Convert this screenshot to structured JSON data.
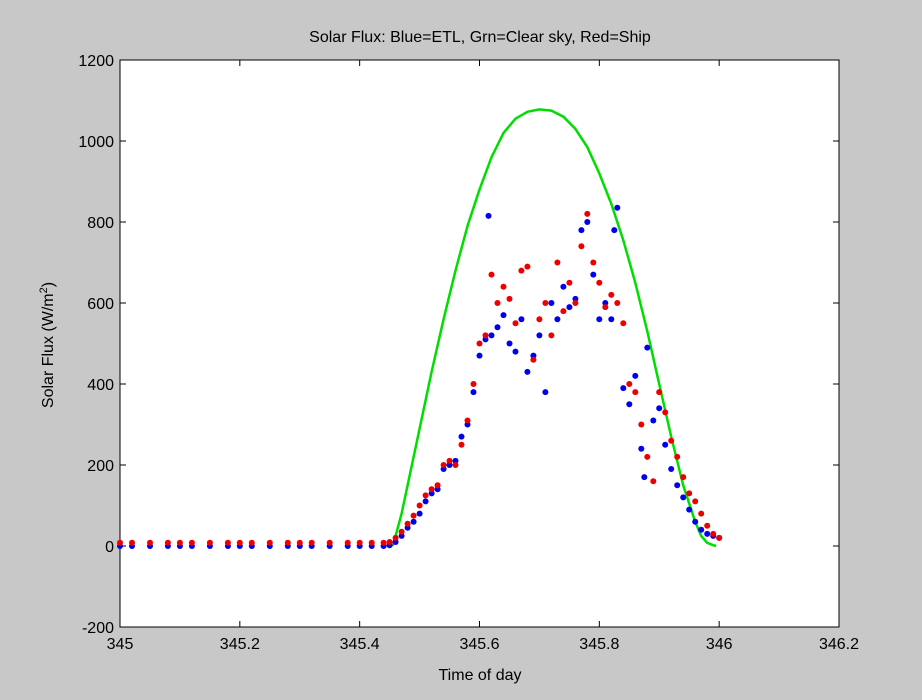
{
  "chart_data": {
    "type": "scatter",
    "title": "Solar Flux:  Blue=ETL, Grn=Clear sky,  Red=Ship",
    "xlabel": "Time of day",
    "ylabel": "Solar Flux (W/m",
    "ylabel_superscript": "2",
    "ylabel_close": ")",
    "xlim": [
      345,
      346.2
    ],
    "ylim": [
      -200,
      1200
    ],
    "xticks": [
      345,
      345.2,
      345.4,
      345.6,
      345.8,
      346,
      346.2
    ],
    "xtick_labels": [
      "345",
      "345.2",
      "345.4",
      "345.6",
      "345.8",
      "346",
      "346.2"
    ],
    "yticks": [
      -200,
      0,
      200,
      400,
      600,
      800,
      1000,
      1200
    ],
    "ytick_labels": [
      "-200",
      "0",
      "200",
      "400",
      "600",
      "800",
      "1000",
      "1200"
    ],
    "grid": false,
    "series": [
      {
        "name": "Grn=Clear sky",
        "style": "line",
        "color": "#00dd00",
        "x": [
          345.455,
          345.46,
          345.47,
          345.48,
          345.5,
          345.52,
          345.54,
          345.56,
          345.58,
          345.6,
          345.62,
          345.64,
          345.66,
          345.68,
          345.7,
          345.72,
          345.74,
          345.76,
          345.78,
          345.8,
          345.82,
          345.84,
          345.86,
          345.88,
          345.9,
          345.92,
          345.94,
          345.96,
          345.97,
          345.98,
          345.99,
          345.995
        ],
        "y": [
          0,
          25,
          80,
          150,
          290,
          430,
          560,
          680,
          790,
          880,
          960,
          1020,
          1055,
          1072,
          1078,
          1075,
          1060,
          1030,
          985,
          920,
          845,
          755,
          650,
          530,
          400,
          270,
          150,
          60,
          25,
          8,
          2,
          0
        ]
      },
      {
        "name": "Blue=ETL",
        "style": "points",
        "color": "#0000ee",
        "x": [
          345.0,
          345.02,
          345.05,
          345.08,
          345.1,
          345.12,
          345.15,
          345.18,
          345.2,
          345.22,
          345.25,
          345.28,
          345.3,
          345.32,
          345.35,
          345.38,
          345.4,
          345.42,
          345.44,
          345.45,
          345.46,
          345.47,
          345.48,
          345.49,
          345.5,
          345.51,
          345.52,
          345.53,
          345.54,
          345.55,
          345.56,
          345.57,
          345.58,
          345.59,
          345.6,
          345.61,
          345.615,
          345.62,
          345.63,
          345.64,
          345.65,
          345.66,
          345.67,
          345.68,
          345.69,
          345.7,
          345.71,
          345.72,
          345.73,
          345.74,
          345.75,
          345.76,
          345.77,
          345.78,
          345.79,
          345.8,
          345.81,
          345.82,
          345.825,
          345.83,
          345.84,
          345.85,
          345.86,
          345.87,
          345.875,
          345.88,
          345.89,
          345.9,
          345.91,
          345.92,
          345.93,
          345.94,
          345.95,
          345.96,
          345.97,
          345.98,
          345.99,
          346.0
        ],
        "y": [
          0,
          0,
          0,
          0,
          0,
          0,
          0,
          0,
          0,
          0,
          0,
          0,
          0,
          0,
          0,
          0,
          0,
          0,
          0,
          2,
          10,
          25,
          45,
          60,
          80,
          110,
          130,
          140,
          190,
          200,
          210,
          270,
          300,
          380,
          470,
          510,
          815,
          520,
          540,
          570,
          500,
          480,
          560,
          430,
          470,
          520,
          380,
          600,
          560,
          640,
          590,
          610,
          780,
          800,
          670,
          560,
          600,
          560,
          780,
          835,
          390,
          350,
          420,
          240,
          170,
          490,
          310,
          340,
          250,
          190,
          150,
          120,
          90,
          60,
          40,
          30,
          25,
          20
        ]
      },
      {
        "name": "Red=Ship",
        "style": "points",
        "color": "#ee0000",
        "x": [
          345.0,
          345.02,
          345.05,
          345.08,
          345.1,
          345.12,
          345.15,
          345.18,
          345.2,
          345.22,
          345.25,
          345.28,
          345.3,
          345.32,
          345.35,
          345.38,
          345.4,
          345.42,
          345.44,
          345.45,
          345.46,
          345.47,
          345.48,
          345.49,
          345.5,
          345.51,
          345.52,
          345.53,
          345.54,
          345.55,
          345.56,
          345.57,
          345.58,
          345.59,
          345.6,
          345.61,
          345.62,
          345.63,
          345.64,
          345.65,
          345.66,
          345.67,
          345.68,
          345.69,
          345.7,
          345.71,
          345.72,
          345.73,
          345.74,
          345.75,
          345.76,
          345.77,
          345.78,
          345.79,
          345.8,
          345.81,
          345.82,
          345.83,
          345.84,
          345.85,
          345.86,
          345.87,
          345.88,
          345.89,
          345.9,
          345.91,
          345.92,
          345.93,
          345.94,
          345.95,
          345.96,
          345.97,
          345.98,
          345.99,
          346.0
        ],
        "y": [
          8,
          8,
          8,
          8,
          8,
          8,
          8,
          8,
          8,
          8,
          8,
          8,
          8,
          8,
          8,
          8,
          8,
          8,
          8,
          10,
          20,
          35,
          55,
          75,
          100,
          125,
          140,
          150,
          200,
          210,
          200,
          250,
          310,
          400,
          500,
          520,
          670,
          600,
          640,
          610,
          550,
          680,
          690,
          460,
          560,
          600,
          520,
          700,
          580,
          650,
          600,
          740,
          820,
          700,
          650,
          590,
          620,
          600,
          550,
          400,
          380,
          300,
          220,
          160,
          380,
          330,
          260,
          220,
          170,
          130,
          110,
          80,
          50,
          30,
          20
        ]
      }
    ]
  }
}
